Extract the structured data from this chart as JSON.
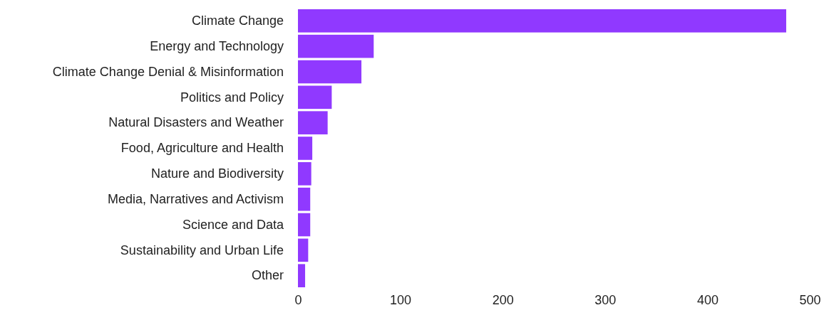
{
  "chart_data": {
    "type": "bar",
    "orientation": "horizontal",
    "categories": [
      "Climate Change",
      "Energy and Technology",
      "Climate Change Denial & Misinformation",
      "Politics and Policy",
      "Natural Disasters and Weather",
      "Food, Agriculture and Health",
      "Nature and Biodiversity",
      "Media, Narratives and Activism",
      "Science and Data",
      "Sustainability and Urban Life",
      "Other"
    ],
    "values": [
      477,
      74,
      62,
      33,
      29,
      14,
      13,
      12,
      12,
      10,
      7
    ],
    "color": "#9039ff",
    "xlim": [
      0,
      500
    ],
    "xticks": [
      0,
      100,
      200,
      300,
      400,
      500
    ],
    "grid": false
  }
}
